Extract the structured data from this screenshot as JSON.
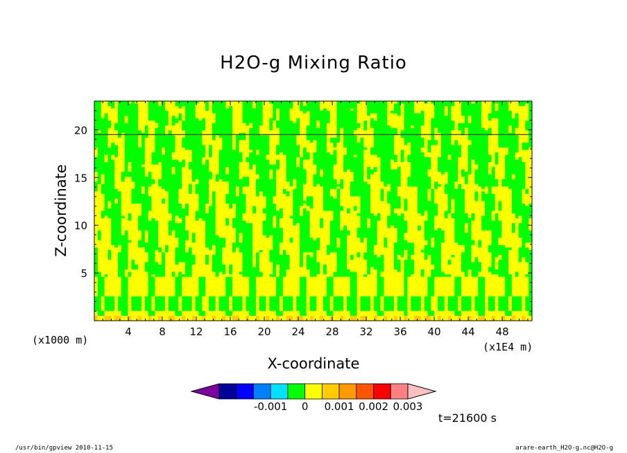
{
  "chart_data": {
    "type": "heatmap",
    "title": "H2O-g Mixing Ratio",
    "xlabel": "X-coordinate",
    "ylabel": "Z-coordinate",
    "x_unit": "(x1000 m)",
    "x_scale_note": "(x1E4 m)",
    "x_range": [
      0,
      51.5
    ],
    "y_range": [
      0,
      23
    ],
    "x_ticks": [
      4,
      8,
      12,
      16,
      20,
      24,
      28,
      32,
      36,
      40,
      44,
      48
    ],
    "y_ticks": [
      5,
      10,
      15,
      20
    ],
    "colorbar": {
      "levels": [
        -0.003,
        -0.0025,
        -0.002,
        -0.0015,
        -0.001,
        -0.0005,
        0,
        0.0005,
        0.001,
        0.0015,
        0.002,
        0.0025,
        0.003,
        0.0035
      ],
      "colors": [
        "#7f00a0",
        "#000099",
        "#0000ff",
        "#0080ff",
        "#00e0ff",
        "#00ff00",
        "#ffff00",
        "#ffcc00",
        "#ff9900",
        "#ff5500",
        "#ff0000",
        "#ff8080",
        "#ffc0c0"
      ],
      "tick_labels": [
        "-0.001",
        "0",
        "0.001",
        "0.002",
        "0.003"
      ],
      "tick_values": [
        -0.001,
        0,
        0.001,
        0.002,
        0.003
      ]
    },
    "dominant_fields": {
      "low_band_z": [
        1,
        2.5
      ],
      "upper_layer_z": 19.5
    }
  },
  "annotations": {
    "time": "t=21600 s",
    "footer_left": "/usr/bin/gpview  2010-11-15",
    "footer_right": "arare-earth_H2O-g.nc@H2O-g"
  }
}
